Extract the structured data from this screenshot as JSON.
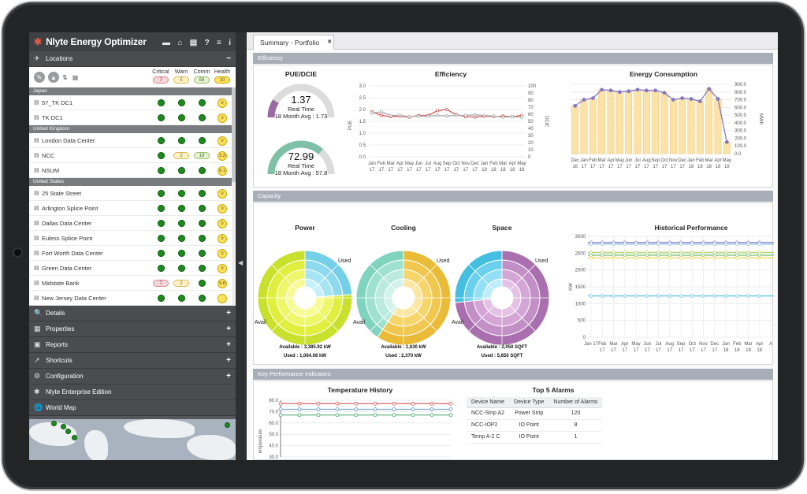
{
  "app": {
    "title": "Nlyte Energy Optimizer"
  },
  "sidebar": {
    "locations_label": "Locations",
    "columns": {
      "critical": "Critical",
      "warn": "Warn",
      "comm": "Comm",
      "health": "Health"
    },
    "summary": {
      "critical": "7",
      "warn": "5",
      "comm": "59",
      "health": "10"
    },
    "groups": [
      {
        "name": "Japan",
        "rows": [
          {
            "name": "57_TK DC1",
            "critical": "",
            "warn": "",
            "comm": "",
            "health": "0"
          },
          {
            "name": "TK DC1",
            "critical": "",
            "warn": "",
            "comm": "",
            "health": "0"
          }
        ]
      },
      {
        "name": "United Kingdom",
        "rows": [
          {
            "name": "London Data Center",
            "critical": "",
            "warn": "",
            "comm": "",
            "health": "0"
          },
          {
            "name": "NCC",
            "critical": "",
            "warn": "2",
            "comm": "19",
            "health": "3.3"
          },
          {
            "name": "NSUM",
            "critical": "",
            "warn": "",
            "comm": "",
            "health": "8.1"
          }
        ]
      },
      {
        "name": "United States",
        "rows": [
          {
            "name": "25 State Street",
            "critical": "",
            "warn": "",
            "comm": "",
            "health": "0"
          },
          {
            "name": "Arlington Splice Point",
            "critical": "",
            "warn": "",
            "comm": "",
            "health": "0"
          },
          {
            "name": "Dallas Data Center",
            "critical": "",
            "warn": "",
            "comm": "",
            "health": "0"
          },
          {
            "name": "Euless Splice Point",
            "critical": "",
            "warn": "",
            "comm": "",
            "health": "0"
          },
          {
            "name": "Fort Worth Data Center",
            "critical": "",
            "warn": "",
            "comm": "",
            "health": "0"
          },
          {
            "name": "Green Data Center",
            "critical": "",
            "warn": "",
            "comm": "",
            "health": "0"
          },
          {
            "name": "Midstate Bank",
            "critical": "7",
            "warn": "2",
            "comm": "",
            "health": "9.8"
          },
          {
            "name": "New Jersey Data Center",
            "critical": "",
            "warn": "",
            "comm": "",
            "health": ""
          }
        ]
      }
    ],
    "accordion": [
      "Details",
      "Properties",
      "Reports",
      "Shortcuts",
      "Configuration",
      "Nlyte Enterprise Edition",
      "World Map"
    ]
  },
  "tab": {
    "label": "Summary - Portfolio"
  },
  "sections": {
    "efficiency": "Efficiency",
    "capacity": "Capacity",
    "kpi": "Key Performance Indicators"
  },
  "pue": {
    "title": "PUE/DCIE",
    "gauge1": {
      "value": "1.37",
      "label": "Real Time",
      "avg": "18 Month Avg :  1.73",
      "fill": 0.18
    },
    "gauge2": {
      "value": "72.99",
      "label": "Real Time",
      "avg": "18 Month Avg :  57.8",
      "fill": 0.73
    }
  },
  "colors": {
    "gauge_purple": "#9a6aa5",
    "gauge_green": "#7fc1a6",
    "accent_purple": "#8577c8",
    "bar_fill": "#fbe3a8"
  },
  "charts": {
    "efficiency": {
      "title": "Efficiency",
      "ylabel": "PUE",
      "y2label": "DCiE",
      "yticks": [
        "3.0",
        "2.5",
        "2.0",
        "1.5",
        "1.0",
        "0.5",
        "0.0"
      ],
      "y2ticks": [
        "100",
        "90",
        "80",
        "70",
        "60",
        "50",
        "40",
        "30",
        "20",
        "10",
        "0"
      ],
      "xticks": [
        [
          "Jan",
          "17"
        ],
        [
          "Feb",
          "17"
        ],
        [
          "Mar",
          "17"
        ],
        [
          "Apr",
          "17"
        ],
        [
          "May",
          "17"
        ],
        [
          "Jun",
          "17"
        ],
        [
          "Jul",
          "17"
        ],
        [
          "Aug",
          "17"
        ],
        [
          "Sep",
          "17"
        ],
        [
          "Oct",
          "17"
        ],
        [
          "Nov",
          "17"
        ],
        [
          "Dec",
          "17"
        ],
        [
          "Jan",
          "18"
        ],
        [
          "Feb",
          "18"
        ],
        [
          "Mar",
          "18"
        ],
        [
          "Apr",
          "18"
        ],
        [
          "May",
          "18"
        ]
      ]
    },
    "energy": {
      "title": "Energy Consumption",
      "y2label": "MWh",
      "y2ticks": [
        "900.0",
        "800.0",
        "700.0",
        "600.0",
        "500.0",
        "400.0",
        "300.0",
        "200.0",
        "100.0",
        "0.0"
      ],
      "xticks": [
        [
          "Dec",
          "16"
        ],
        [
          "Jan",
          "17"
        ],
        [
          "Feb",
          "17"
        ],
        [
          "Mar",
          "17"
        ],
        [
          "Apr",
          "17"
        ],
        [
          "May",
          "17"
        ],
        [
          "Jun",
          "17"
        ],
        [
          "Jul",
          "17"
        ],
        [
          "Aug",
          "17"
        ],
        [
          "Sep",
          "17"
        ],
        [
          "Oct",
          "17"
        ],
        [
          "Nov",
          "17"
        ],
        [
          "Dec",
          "17"
        ],
        [
          "Jan",
          "18"
        ],
        [
          "Feb",
          "18"
        ],
        [
          "Mar",
          "18"
        ],
        [
          "Apr",
          "18"
        ],
        [
          "May",
          "18"
        ]
      ]
    },
    "historical": {
      "title": "Historical Performance",
      "ylabel": "KW",
      "yticks": [
        "3000",
        "2500",
        "2000",
        "1500",
        "1000",
        "500",
        "0"
      ],
      "xticks": [
        [
          "Jan 17",
          ""
        ],
        [
          "Feb",
          "17"
        ],
        [
          "Mar",
          "17"
        ],
        [
          "Apr",
          "17"
        ],
        [
          "May",
          "17"
        ],
        [
          "Jun",
          "17"
        ],
        [
          "Jul",
          "17"
        ],
        [
          "Aug",
          "17"
        ],
        [
          "Sep",
          "17"
        ],
        [
          "Oct",
          "17"
        ],
        [
          "Nov",
          "17"
        ],
        [
          "Dec",
          "17"
        ],
        [
          "Jan",
          "18"
        ],
        [
          "Feb",
          "18"
        ],
        [
          "Mar",
          "18"
        ],
        [
          "Apr",
          "18"
        ],
        [
          "A",
          ""
        ]
      ]
    },
    "temperature": {
      "title": "Temperature History",
      "ylabel": "emperature",
      "yticks": [
        "80.0",
        "70.0",
        "60.0",
        "50.0",
        "40.0",
        "30.0"
      ]
    }
  },
  "chart_data": [
    {
      "type": "line",
      "title": "Efficiency",
      "ylabel": "PUE",
      "ylim": [
        0,
        3.0
      ],
      "x": [
        "Jan 17",
        "Feb 17",
        "Mar 17",
        "Apr 17",
        "May 17",
        "Jun 17",
        "Jul 17",
        "Aug 17",
        "Sep 17",
        "Oct 17",
        "Nov 17",
        "Dec 17",
        "Jan 18",
        "Feb 18",
        "Mar 18",
        "Apr 18",
        "May 18"
      ],
      "series": [
        {
          "values": [
            1.9,
            1.75,
            1.7,
            1.72,
            1.68,
            1.75,
            1.75,
            1.95,
            2.0,
            1.78,
            1.7,
            1.68,
            1.72,
            1.7,
            1.72,
            1.7,
            1.75
          ]
        },
        {
          "values": [
            1.85,
            1.9,
            1.75,
            1.75,
            1.7,
            1.72,
            1.72,
            1.75,
            1.72,
            1.75,
            1.75,
            1.78,
            1.75,
            1.72,
            1.68,
            1.7,
            1.68
          ]
        }
      ]
    },
    {
      "type": "bar",
      "title": "Energy Consumption",
      "ylabel": "MWh",
      "ylim": [
        0,
        900
      ],
      "categories": [
        "Dec 16",
        "Jan 17",
        "Feb 17",
        "Mar 17",
        "Apr 17",
        "May 17",
        "Jun 17",
        "Jul 17",
        "Aug 17",
        "Sep 17",
        "Oct 17",
        "Nov 17",
        "Dec 17",
        "Jan 18",
        "Feb 18",
        "Mar 18",
        "Apr 18",
        "May 18"
      ],
      "values": [
        620,
        700,
        720,
        830,
        820,
        800,
        810,
        830,
        820,
        820,
        790,
        700,
        720,
        710,
        680,
        840,
        710,
        150
      ]
    },
    {
      "type": "line",
      "title": "Historical Performance",
      "ylabel": "KW",
      "ylim": [
        0,
        3000
      ],
      "x": [
        "Jan 17",
        "Feb 17",
        "Mar 17",
        "Apr 17",
        "May 17",
        "Jun 17",
        "Jul 17",
        "Aug 17",
        "Sep 17",
        "Oct 17",
        "Nov 17",
        "Dec 17",
        "Jan 18",
        "Feb 18",
        "Mar 18",
        "Apr 18"
      ],
      "series": [
        {
          "values": [
            2820,
            2820,
            2820,
            2820,
            2820,
            2820,
            2820,
            2820,
            2820,
            2820,
            2820,
            2820,
            2820,
            2820,
            2820,
            2820
          ]
        },
        {
          "values": [
            2770,
            2770,
            2770,
            2770,
            2770,
            2770,
            2770,
            2770,
            2770,
            2770,
            2770,
            2770,
            2770,
            2770,
            2770,
            2770
          ]
        },
        {
          "values": [
            2520,
            2520,
            2520,
            2520,
            2520,
            2520,
            2520,
            2520,
            2520,
            2520,
            2520,
            2520,
            2520,
            2520,
            2520,
            2520
          ]
        },
        {
          "values": [
            2440,
            2440,
            2440,
            2440,
            2440,
            2440,
            2440,
            2440,
            2440,
            2440,
            2440,
            2440,
            2440,
            2440,
            2440,
            2440
          ]
        },
        {
          "values": [
            2360,
            2360,
            2360,
            2360,
            2360,
            2360,
            2360,
            2360,
            2360,
            2360,
            2360,
            2360,
            2360,
            2360,
            2360,
            2360
          ]
        },
        {
          "values": [
            1230,
            1230,
            1230,
            1230,
            1230,
            1230,
            1230,
            1230,
            1230,
            1230,
            1230,
            1230,
            1230,
            1230,
            1230,
            1230
          ]
        }
      ],
      "colors": [
        "#8a8fd6",
        "#9bbfe3",
        "#b7d66b",
        "#7cc477",
        "#f0d860",
        "#6ac6e8"
      ]
    },
    {
      "type": "line",
      "title": "Temperature History",
      "ylabel": "emperature",
      "ylim": [
        30,
        80
      ],
      "series": [
        {
          "values": [
            77,
            77,
            77,
            77,
            77,
            77,
            77,
            77,
            77,
            77
          ]
        },
        {
          "values": [
            72,
            72,
            72,
            72,
            72,
            72,
            72,
            72,
            72,
            72
          ]
        },
        {
          "values": [
            67,
            67,
            67,
            67,
            67,
            67,
            67,
            67,
            67,
            67
          ]
        }
      ],
      "colors": [
        "#e57373",
        "#7fa8d6",
        "#66b98a"
      ]
    },
    {
      "type": "pie",
      "title": "Power",
      "labels": [
        "Used",
        "Avail"
      ],
      "values": [
        1064.08,
        3385.92
      ],
      "available": "Available : 3,385.92 kW",
      "used": "Used : 1,064.08 kW",
      "colors": [
        "#8fd9ee",
        "#e8f44a"
      ]
    },
    {
      "type": "pie",
      "title": "Cooling",
      "labels": [
        "Used",
        "Avail"
      ],
      "values": [
        2370,
        1630
      ],
      "available": "Available : 1,630 kW",
      "used": "Used : 2,370 kW",
      "colors": [
        "#f6d56a",
        "#9fe1d1"
      ]
    },
    {
      "type": "pie",
      "title": "Space",
      "labels": [
        "Used",
        "Avail"
      ],
      "values": [
        5650,
        2050
      ],
      "available": "Available : 2,050 SQFT",
      "used": "Used : 5,650 SQFT",
      "colors": [
        "#c28fc6",
        "#6ad0ee"
      ]
    }
  ],
  "alarms": {
    "title": "Top 5 Alarms",
    "headers": [
      "Device Name",
      "Device Type",
      "Number of Alarms"
    ],
    "rows": [
      [
        "NCC-Strip A2",
        "Power Strip",
        "120"
      ],
      [
        "NCC-IOP2",
        "IO Point",
        "8"
      ],
      [
        "Temp A-2 C",
        "IO Point",
        "1"
      ]
    ]
  }
}
